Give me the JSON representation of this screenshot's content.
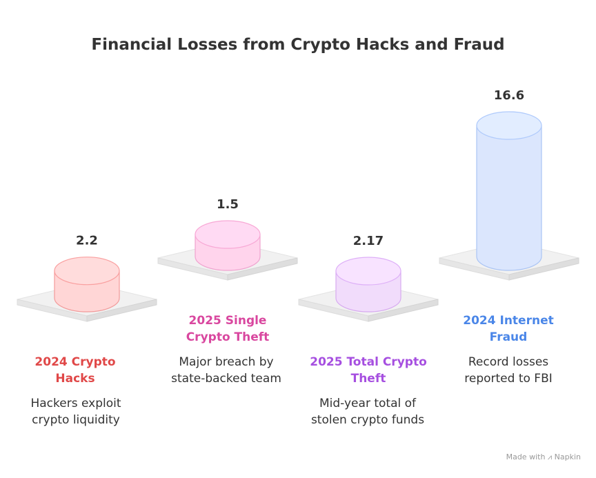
{
  "chart_data": {
    "type": "bar",
    "title": "Financial Losses from Crypto Hacks and Fraud",
    "categories": [
      "2024 Crypto Hacks",
      "2025 Single Crypto Theft",
      "2025 Total Crypto Theft",
      "2024 Internet Fraud"
    ],
    "values": [
      2.2,
      1.5,
      2.17,
      16.6
    ],
    "value_labels": [
      "2.2",
      "1.5",
      "2.17",
      "16.6"
    ],
    "descriptions": [
      "Hackers exploit crypto liquidity",
      "Major breach by state-backed team",
      "Mid-year total of stolen crypto funds",
      "Record losses reported to FBI"
    ],
    "colors": {
      "fill": [
        "#ffd6d6",
        "#ffd4ec",
        "#f1dcfb",
        "#dbe6fd"
      ],
      "stroke": [
        "#f29a9a",
        "#f0a3cf",
        "#d7aaf0",
        "#aac4f4"
      ],
      "text": [
        "#e04848",
        "#d9479f",
        "#a64fe0",
        "#4a86e8"
      ]
    }
  },
  "credit": {
    "prefix": "Made with",
    "brand": "Napkin"
  }
}
